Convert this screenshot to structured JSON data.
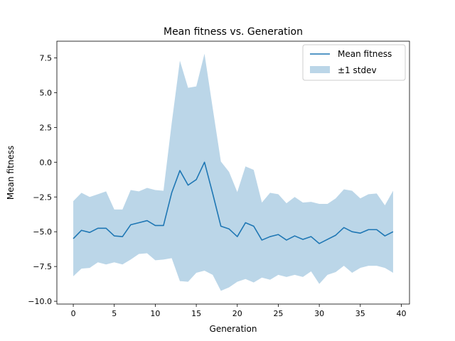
{
  "chart_data": {
    "type": "line",
    "title": "Mean fitness vs. Generation",
    "xlabel": "Generation",
    "ylabel": "Mean fitness",
    "xlim": [
      -2,
      41
    ],
    "ylim": [
      -10.2,
      8.7
    ],
    "xticks": [
      0,
      5,
      10,
      15,
      20,
      25,
      30,
      35,
      40
    ],
    "xtick_labels": [
      "0",
      "5",
      "10",
      "15",
      "20",
      "25",
      "30",
      "35",
      "40"
    ],
    "yticks": [
      -10.0,
      -7.5,
      -5.0,
      -2.5,
      0.0,
      2.5,
      5.0,
      7.5
    ],
    "ytick_labels": [
      "−10.0",
      "−7.5",
      "−5.0",
      "−2.5",
      "0.0",
      "2.5",
      "5.0",
      "7.5"
    ],
    "grid": false,
    "legend_position": "top-right",
    "x": [
      0,
      1,
      2,
      3,
      4,
      5,
      6,
      7,
      8,
      9,
      10,
      11,
      12,
      13,
      14,
      15,
      16,
      17,
      18,
      19,
      20,
      21,
      22,
      23,
      24,
      25,
      26,
      27,
      28,
      29,
      30,
      31,
      32,
      33,
      34,
      35,
      36,
      37,
      38,
      39
    ],
    "series": [
      {
        "name": "Mean fitness",
        "kind": "line",
        "color": "#1f77b4",
        "values": [
          -5.5,
          -4.9,
          -5.05,
          -4.75,
          -4.75,
          -5.3,
          -5.35,
          -4.5,
          -4.35,
          -4.2,
          -4.55,
          -4.55,
          -2.2,
          -0.6,
          -1.65,
          -1.25,
          0.0,
          -2.25,
          -4.6,
          -4.8,
          -5.35,
          -4.35,
          -4.6,
          -5.6,
          -5.35,
          -5.2,
          -5.6,
          -5.3,
          -5.55,
          -5.35,
          -5.85,
          -5.55,
          -5.25,
          -4.7,
          -5.0,
          -5.1,
          -4.85,
          -4.85,
          -5.3,
          -5.0
        ]
      },
      {
        "name": "±1 stdev",
        "kind": "band",
        "color": "#1f77b4",
        "opacity": 0.3,
        "upper": [
          -2.8,
          -2.2,
          -2.5,
          -2.3,
          -2.1,
          -3.4,
          -3.4,
          -2.0,
          -2.1,
          -1.85,
          -2.0,
          -2.05,
          2.8,
          7.3,
          5.35,
          5.45,
          7.8,
          3.9,
          0.05,
          -0.7,
          -2.15,
          -0.3,
          -0.55,
          -2.9,
          -2.2,
          -2.3,
          -2.95,
          -2.5,
          -2.9,
          -2.85,
          -3.0,
          -3.0,
          -2.6,
          -1.95,
          -2.05,
          -2.6,
          -2.3,
          -2.25,
          -3.1,
          -2.05
        ],
        "lower": [
          -8.2,
          -7.65,
          -7.6,
          -7.2,
          -7.35,
          -7.2,
          -7.35,
          -7.0,
          -6.6,
          -6.55,
          -7.05,
          -7.0,
          -6.9,
          -8.55,
          -8.6,
          -7.95,
          -7.8,
          -8.1,
          -9.25,
          -9.0,
          -8.6,
          -8.4,
          -8.65,
          -8.3,
          -8.45,
          -8.1,
          -8.25,
          -8.1,
          -8.25,
          -7.85,
          -8.75,
          -8.1,
          -7.9,
          -7.45,
          -7.95,
          -7.6,
          -7.45,
          -7.45,
          -7.6,
          -7.95
        ]
      }
    ]
  }
}
